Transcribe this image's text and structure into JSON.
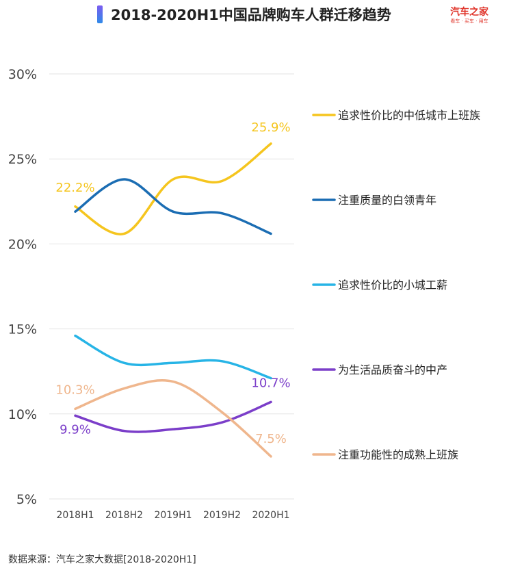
{
  "header": {
    "title": "2018-2020H1中国品牌购车人群迁移趋势",
    "logo_main": "汽车之家",
    "logo_sub": "看车 · 买车 · 用车"
  },
  "footer": {
    "source": "数据来源：汽车之家大数据[2018-2020H1]"
  },
  "colors": {
    "grid": "#e3e3e3",
    "axis_text": "#444444"
  },
  "chart_data": {
    "type": "line",
    "categories": [
      "2018H1",
      "2018H2",
      "2019H1",
      "2019H2",
      "2020H1"
    ],
    "y_ticks": [
      "5%",
      "10%",
      "15%",
      "20%",
      "25%",
      "30%"
    ],
    "y_tick_values": [
      5,
      10,
      15,
      20,
      25,
      30
    ],
    "ylim": [
      5,
      30
    ],
    "grid": true,
    "legend_position": "right",
    "series": [
      {
        "name": "追求性价比的中低城市上班族",
        "color": "#f5c51e",
        "values": [
          22.2,
          20.6,
          23.8,
          23.7,
          25.9
        ],
        "labels": [
          {
            "index": 0,
            "text": "22.2%"
          },
          {
            "index": 4,
            "text": "25.9%"
          }
        ]
      },
      {
        "name": "注重质量的白领青年",
        "color": "#1b6db3",
        "values": [
          21.9,
          23.8,
          21.9,
          21.8,
          20.6
        ],
        "labels": []
      },
      {
        "name": "追求性价比的小城工薪",
        "color": "#27b4e6",
        "values": [
          14.6,
          13.0,
          13.0,
          13.1,
          12.1
        ],
        "labels": []
      },
      {
        "name": "为生活品质奋斗的中产",
        "color": "#7b3ec9",
        "values": [
          9.9,
          9.0,
          9.1,
          9.5,
          10.7
        ],
        "labels": [
          {
            "index": 0,
            "text": "9.9%"
          },
          {
            "index": 4,
            "text": "10.7%"
          }
        ]
      },
      {
        "name": "注重功能性的成熟上班族",
        "color": "#efb68d",
        "values": [
          10.3,
          11.5,
          11.9,
          10.1,
          7.5
        ],
        "labels": [
          {
            "index": 0,
            "text": "10.3%"
          },
          {
            "index": 4,
            "text": "7.5%"
          }
        ]
      }
    ]
  }
}
